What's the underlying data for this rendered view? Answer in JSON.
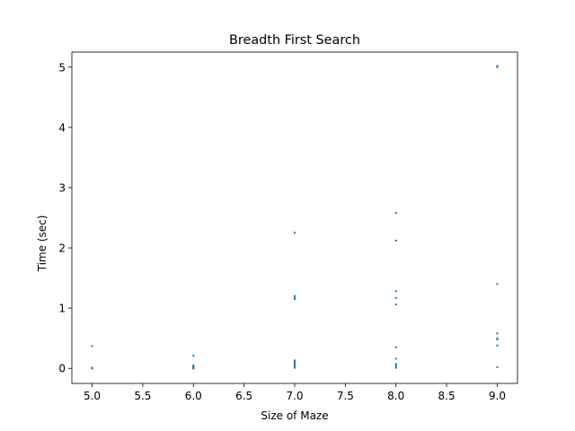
{
  "chart_data": {
    "type": "scatter",
    "title": "Breadth First Search",
    "xlabel": "Size of Maze",
    "ylabel": "Time (sec)",
    "xlim": [
      4.8,
      9.2
    ],
    "ylim": [
      -0.25,
      5.25
    ],
    "xticks": [
      "5.0",
      "5.5",
      "6.0",
      "6.5",
      "7.0",
      "7.5",
      "8.0",
      "8.5",
      "9.0"
    ],
    "yticks": [
      "0",
      "1",
      "2",
      "3",
      "4",
      "5"
    ],
    "grid": false,
    "marker_color": "#1f77b4",
    "series": [
      {
        "x": [
          5,
          5,
          5,
          5,
          5,
          5,
          6,
          6,
          6,
          6,
          6,
          6,
          6,
          7,
          7,
          7,
          7,
          7,
          7,
          7,
          7,
          7,
          7,
          8,
          8,
          8,
          8,
          8,
          8,
          8,
          8,
          8,
          8,
          8,
          9,
          9,
          9,
          9,
          9,
          9,
          9,
          9
        ],
        "y": [
          0.37,
          0.01,
          0.0,
          0.0,
          0.0,
          0.0,
          0.21,
          0.05,
          0.03,
          0.02,
          0.01,
          0.0,
          0.0,
          2.25,
          1.2,
          1.17,
          1.15,
          0.13,
          0.1,
          0.07,
          0.05,
          0.03,
          0.01,
          2.58,
          2.12,
          1.28,
          1.17,
          1.06,
          0.35,
          0.16,
          0.07,
          0.05,
          0.02,
          0.01,
          5.02,
          5.0,
          1.4,
          0.58,
          0.5,
          0.48,
          0.38,
          0.02
        ]
      }
    ]
  }
}
